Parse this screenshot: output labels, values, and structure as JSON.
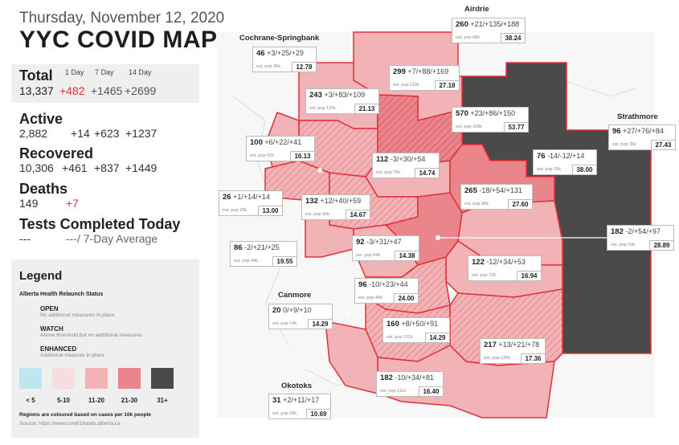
{
  "header": {
    "date": "Thursday, November 12, 2020",
    "title": "YYC COVID MAP"
  },
  "totals": {
    "label": "Total",
    "value": "13,337",
    "col_1day": "1 Day",
    "col_7day": "7 Day",
    "col_14day": "14 Day",
    "d1": "+482",
    "d7": "+1465",
    "d14": "+2699"
  },
  "active": {
    "label": "Active",
    "value": "2,882",
    "d1": "+14",
    "d7": "+623",
    "d14": "+1237"
  },
  "recovered": {
    "label": "Recovered",
    "value": "10,306",
    "d1": "+461",
    "d7": "+837",
    "d14": "+1449"
  },
  "deaths": {
    "label": "Deaths",
    "value": "149",
    "d1": "+7"
  },
  "tests": {
    "label": "Tests Completed Today",
    "value": "---",
    "avg": "---/ 7-Day Average"
  },
  "legend": {
    "title": "Legend",
    "status_title": "Alberta Health Relaunch Status",
    "open_label": "OPEN",
    "open_desc": "No additional measures in place",
    "watch_label": "WATCH",
    "watch_desc": "Above threshold but no additional measures",
    "enhanced_label": "ENHANCED",
    "enhanced_desc": "Additional measure in place",
    "categories": [
      "< 5",
      "5-10",
      "11-20",
      "21-30",
      "31+"
    ],
    "category_colors": [
      "#bfe6ef",
      "#f6dde0",
      "#f2b3b7",
      "#e9858b",
      "#4a4a4b"
    ],
    "note": "Regions are coloured based on cases per 10k people",
    "source": "Source: https://www.covid19stats.alberta.ca"
  },
  "towns": {
    "airdrie": "Airdrie",
    "cochrane": "Cochrane-Springbank",
    "strathmore": "Strathmore",
    "canmore": "Canmore",
    "okotoks": "Okotoks"
  },
  "regions": [
    {
      "id": "cochrane",
      "cases": "46",
      "deltas": "+3/+25/+29",
      "pop": "est. pop 36k",
      "rate": "12.78"
    },
    {
      "id": "airdrie",
      "cases": "260",
      "deltas": "+21/+135/+188",
      "pop": "est. pop 68k",
      "rate": "38.24"
    },
    {
      "id": "nw-north",
      "cases": "299",
      "deltas": "+7/+88/+169",
      "pop": "est. pop 110k",
      "rate": "27.18"
    },
    {
      "id": "nw-west",
      "cases": "243",
      "deltas": "+3/+83/+109",
      "pop": "est. pop 115k",
      "rate": "21.13"
    },
    {
      "id": "ne-north",
      "cases": "570",
      "deltas": "+23/+86/+150",
      "pop": "est. pop 106k",
      "rate": "53.77"
    },
    {
      "id": "strathmore",
      "cases": "96",
      "deltas": "+27/+76/+84",
      "pop": "est. pop 35k",
      "rate": "27.43"
    },
    {
      "id": "bearspaw",
      "cases": "100",
      "deltas": "+6/+22/+41",
      "pop": "est. pop 62k",
      "rate": "16.13"
    },
    {
      "id": "nw-inner",
      "cases": "112",
      "deltas": "-3/+30/+54",
      "pop": "est. pop 76k",
      "rate": "14.74"
    },
    {
      "id": "ne-east",
      "cases": "76",
      "deltas": "-14/-12/+14",
      "pop": "est. pop 20k",
      "rate": "38.00"
    },
    {
      "id": "upper-ne",
      "cases": "265",
      "deltas": "-18/+54/+131",
      "pop": "est. pop 96k",
      "rate": "27.60"
    },
    {
      "id": "west-bragg",
      "cases": "26",
      "deltas": "+1/+14/+14",
      "pop": "est. pop 20k",
      "rate": "13.00"
    },
    {
      "id": "west-bow",
      "cases": "132",
      "deltas": "+12/+40/+59",
      "pop": "est. pop 90k",
      "rate": "14.67"
    },
    {
      "id": "chestermere",
      "cases": "182",
      "deltas": "-2/+54/+97",
      "pop": "est. pop 63k",
      "rate": "28.89"
    },
    {
      "id": "sw-west",
      "cases": "86",
      "deltas": "-2/+21/+25",
      "pop": "est. pop 44k",
      "rate": "19.55"
    },
    {
      "id": "centre",
      "cases": "92",
      "deltas": "-3/+31/+47",
      "pop": "est. pop 64k",
      "rate": "14.38"
    },
    {
      "id": "se-east",
      "cases": "122",
      "deltas": "-12/+34/+53",
      "pop": "est. pop 72k",
      "rate": "16.94"
    },
    {
      "id": "elbow",
      "cases": "96",
      "deltas": "-10/+23/+44",
      "pop": "est. pop 40k",
      "rate": "24.00"
    },
    {
      "id": "canmore",
      "cases": "20",
      "deltas": "0/+9/+10",
      "pop": "est. pop 14k",
      "rate": "14.29"
    },
    {
      "id": "sw-south",
      "cases": "160",
      "deltas": "+8/+50/+91",
      "pop": "est. pop 112k",
      "rate": "14.29"
    },
    {
      "id": "se-south",
      "cases": "217",
      "deltas": "+13/+21/+78",
      "pop": "est. pop 125k",
      "rate": "17.36"
    },
    {
      "id": "far-south",
      "cases": "182",
      "deltas": "-10/+34/+81",
      "pop": "est. pop 111k",
      "rate": "16.40"
    },
    {
      "id": "okotoks",
      "cases": "31",
      "deltas": "+2/+11/+17",
      "pop": "est. pop 29k",
      "rate": "10.69"
    }
  ]
}
